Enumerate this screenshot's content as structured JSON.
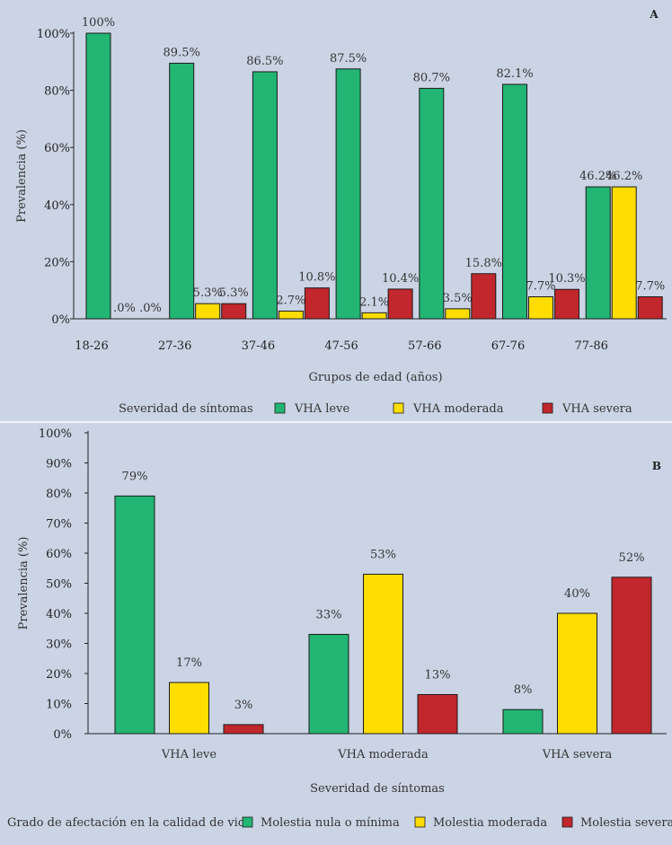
{
  "chart_data": [
    {
      "type": "bar",
      "panel": "A",
      "ylabel": "Prevalencia (%)",
      "xlabel": "Grupos de edad (años)",
      "ylim": [
        0,
        100
      ],
      "yticks": [
        "0%",
        "20%",
        "40%",
        "60%",
        "80%",
        "100%"
      ],
      "categories": [
        "18-26",
        "27-36",
        "37-46",
        "47-56",
        "57-66",
        "67-76",
        "77-86"
      ],
      "legend_title": "Severidad de síntomas",
      "series": [
        {
          "name": "VHA leve",
          "color": "#22b573",
          "values": [
            100,
            89.5,
            86.5,
            87.5,
            80.7,
            82.1,
            46.2
          ],
          "labels": [
            "100%",
            "89.5%",
            "86.5%",
            "87.5%",
            "80.7%",
            "82.1%",
            "46.2%"
          ]
        },
        {
          "name": "VHA moderada",
          "color": "#ffdd00",
          "values": [
            0,
            5.3,
            2.7,
            2.1,
            3.5,
            7.7,
            46.2
          ],
          "labels": [
            ".0%",
            "5.3%",
            "2.7%",
            "2.1%",
            "3.5%",
            "7.7%",
            "46.2%"
          ]
        },
        {
          "name": "VHA severa",
          "color": "#c1272d",
          "values": [
            0,
            5.3,
            10.8,
            10.4,
            15.8,
            10.3,
            7.7
          ],
          "labels": [
            ".0%",
            "5.3%",
            "10.8%",
            "10.4%",
            "15.8%",
            "10.3%",
            "7.7%"
          ]
        }
      ]
    },
    {
      "type": "bar",
      "panel": "B",
      "ylabel": "Prevalencia (%)",
      "xlabel": "Severidad de síntomas",
      "ylim": [
        0,
        100
      ],
      "yticks": [
        "0%",
        "10%",
        "20%",
        "30%",
        "40%",
        "50%",
        "60%",
        "70%",
        "80%",
        "90%",
        "100%"
      ],
      "categories": [
        "VHA leve",
        "VHA moderada",
        "VHA severa"
      ],
      "legend_title": "Grado de afectación en la calidad de vida",
      "series": [
        {
          "name": "Molestia nula o mínima",
          "color": "#22b573",
          "values": [
            79,
            33,
            8
          ],
          "labels": [
            "79%",
            "33%",
            "8%"
          ]
        },
        {
          "name": "Molestia moderada",
          "color": "#ffdd00",
          "values": [
            17,
            53,
            40
          ],
          "labels": [
            "17%",
            "53%",
            "40%"
          ]
        },
        {
          "name": "Molestia severa",
          "color": "#c1272d",
          "values": [
            3,
            13,
            52
          ],
          "labels": [
            "3%",
            "13%",
            "52%"
          ]
        }
      ]
    }
  ]
}
